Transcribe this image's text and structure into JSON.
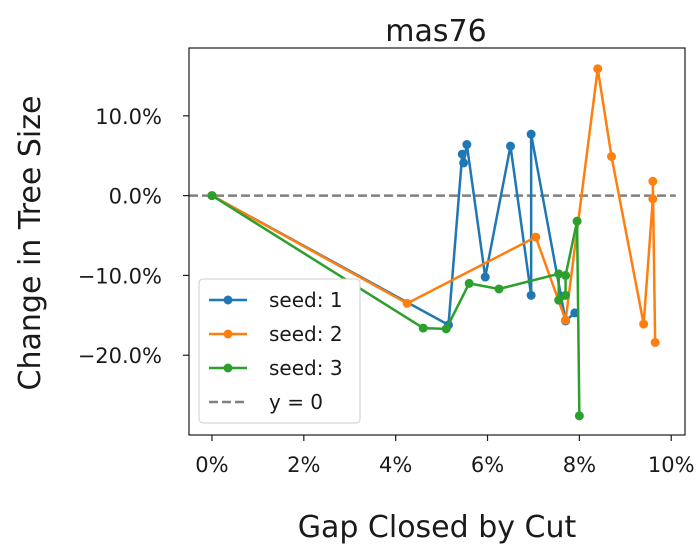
{
  "chart_data": {
    "type": "line",
    "title": "mas76",
    "xlabel": "Gap Closed by Cut",
    "ylabel": "Change in Tree Size",
    "xlim": [
      -0.5,
      10.3
    ],
    "ylim": [
      -30,
      18.5
    ],
    "x_ticks": [
      0,
      2,
      4,
      6,
      8,
      10
    ],
    "x_tick_labels": [
      "0%",
      "2%",
      "4%",
      "6%",
      "8%",
      "10%"
    ],
    "y_ticks": [
      -20,
      -10,
      0,
      10
    ],
    "y_tick_labels": [
      "−20.0%",
      "−10.0%",
      "0.0%",
      "10.0%"
    ],
    "grid": false,
    "legend_position": "lower-left",
    "series": [
      {
        "name": "seed: 1",
        "color": "#1f77b4",
        "points": [
          [
            0,
            0
          ],
          [
            5.15,
            -16.2
          ],
          [
            5.45,
            5.2
          ],
          [
            5.48,
            4.1
          ],
          [
            5.55,
            6.4
          ],
          [
            5.95,
            -10.2
          ],
          [
            6.5,
            6.2
          ],
          [
            6.95,
            -12.5
          ],
          [
            6.95,
            7.7
          ],
          [
            7.6,
            -12.6
          ],
          [
            7.7,
            -15.7
          ],
          [
            7.9,
            -14.7
          ]
        ]
      },
      {
        "name": "seed: 2",
        "color": "#ff7f0e",
        "points": [
          [
            0,
            0
          ],
          [
            4.25,
            -13.5
          ],
          [
            7.05,
            -5.2
          ],
          [
            7.7,
            -15.6
          ],
          [
            8.4,
            15.9
          ],
          [
            8.7,
            4.9
          ],
          [
            9.4,
            -16.1
          ],
          [
            9.6,
            -0.4
          ],
          [
            9.6,
            1.8
          ],
          [
            9.65,
            -18.4
          ]
        ]
      },
      {
        "name": "seed: 3",
        "color": "#2ca02c",
        "points": [
          [
            0,
            0
          ],
          [
            4.6,
            -16.6
          ],
          [
            5.1,
            -16.7
          ],
          [
            5.6,
            -11.0
          ],
          [
            6.25,
            -11.7
          ],
          [
            7.55,
            -9.8
          ],
          [
            7.55,
            -13.1
          ],
          [
            7.7,
            -12.5
          ],
          [
            7.7,
            -10.0
          ],
          [
            7.95,
            -3.2
          ],
          [
            8.0,
            -27.6
          ]
        ]
      }
    ],
    "reference_line": {
      "name": "y = 0",
      "y": 0,
      "x_range": [
        -0.5,
        10.1
      ],
      "color": "#808080",
      "style": "dashed"
    }
  }
}
